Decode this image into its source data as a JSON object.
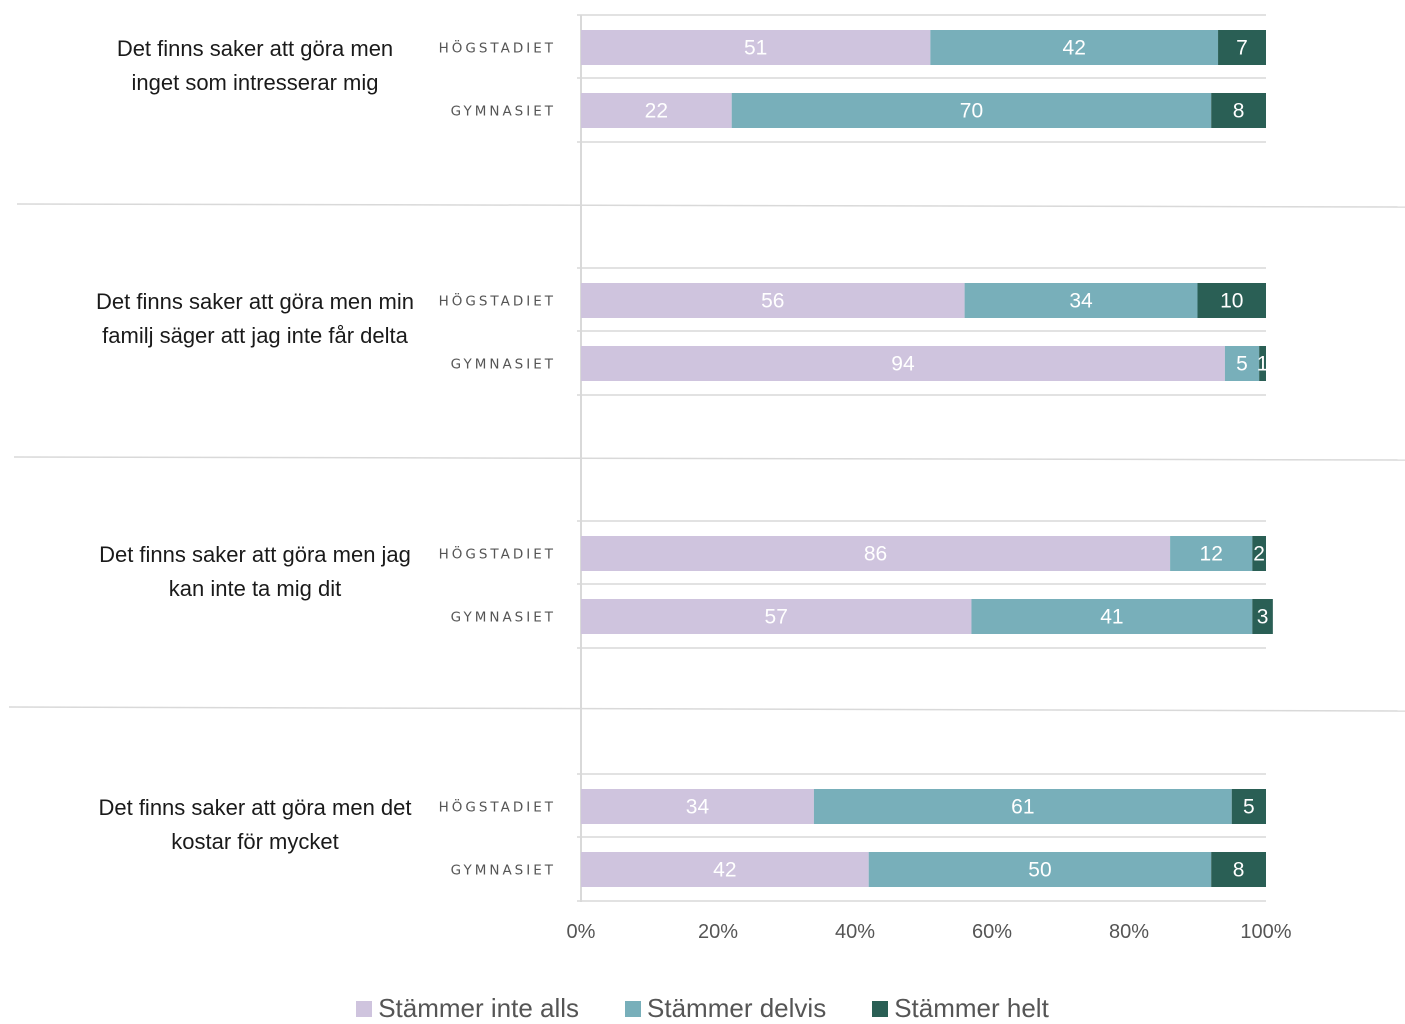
{
  "chart_data": {
    "type": "bar",
    "stacked": true,
    "orientation": "horizontal",
    "xlim": [
      0,
      100
    ],
    "x_tick_labels": [
      "0%",
      "20%",
      "40%",
      "60%",
      "80%",
      "100%"
    ],
    "legend_position": "bottom",
    "series": [
      {
        "name": "Stämmer inte alls",
        "color": "#cfc4de",
        "label_color": "#ffffff"
      },
      {
        "name": "Stämmer delvis",
        "color": "#78afba",
        "label_color": "#ffffff"
      },
      {
        "name": "Stämmer helt",
        "color": "#2a5f55",
        "label_color": "#ffffff"
      }
    ],
    "groups": [
      {
        "question": [
          "Det finns saker att göra men",
          "inget som intresserar mig"
        ],
        "bars": [
          {
            "label": "HÖGSTADIET",
            "values": [
              51,
              42,
              7
            ]
          },
          {
            "label": "GYMNASIET",
            "values": [
              22,
              70,
              8
            ]
          }
        ]
      },
      {
        "question": [
          "Det finns saker att göra men min",
          "familj säger att jag inte får delta"
        ],
        "bars": [
          {
            "label": "HÖGSTADIET",
            "values": [
              56,
              34,
              10
            ]
          },
          {
            "label": "GYMNASIET",
            "values": [
              94,
              5,
              1
            ]
          }
        ]
      },
      {
        "question": [
          "Det finns saker att göra men jag",
          "kan inte ta mig dit"
        ],
        "bars": [
          {
            "label": "HÖGSTADIET",
            "values": [
              86,
              12,
              2
            ]
          },
          {
            "label": "GYMNASIET",
            "values": [
              57,
              41,
              3
            ]
          }
        ]
      },
      {
        "question": [
          "Det finns saker att göra men det",
          "kostar för mycket"
        ],
        "bars": [
          {
            "label": "HÖGSTADIET",
            "values": [
              34,
              61,
              5
            ]
          },
          {
            "label": "GYMNASIET",
            "values": [
              42,
              50,
              8
            ]
          }
        ]
      }
    ]
  }
}
